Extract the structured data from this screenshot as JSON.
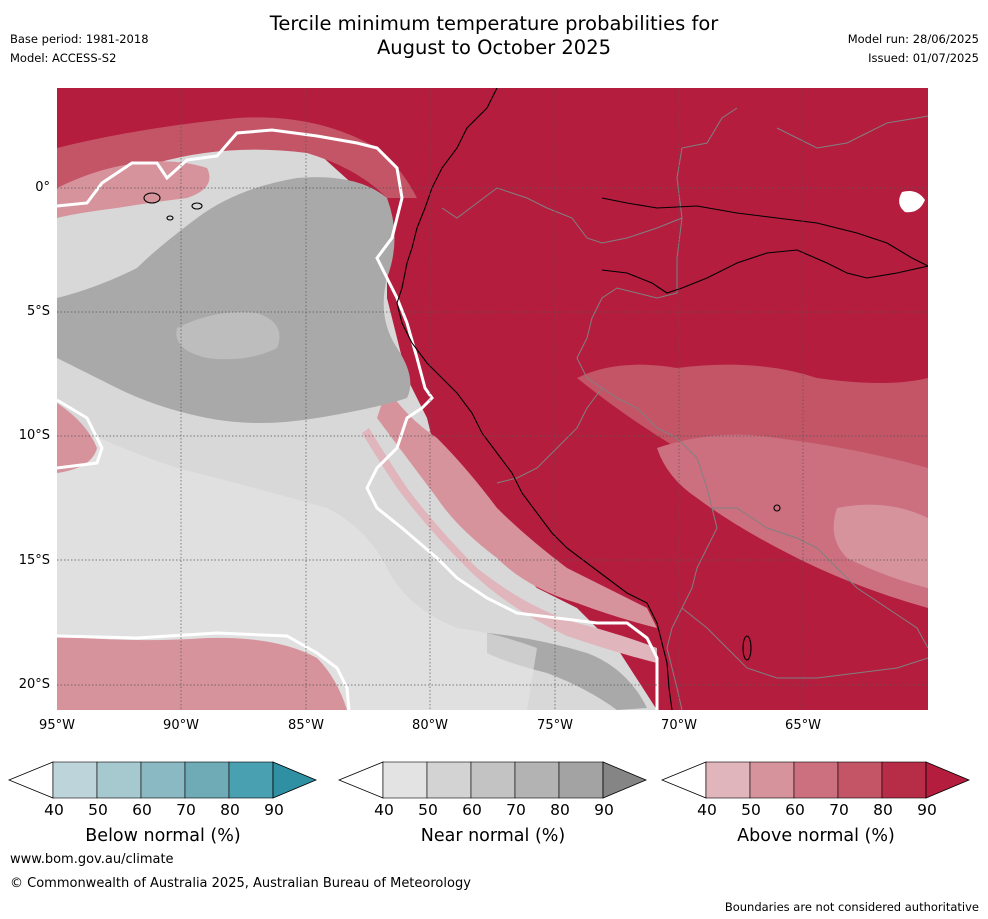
{
  "title": {
    "line1": "Tercile minimum temperature probabilities for",
    "line2": "August to October 2025"
  },
  "meta": {
    "base_period": "Base period: 1981-2018",
    "model": "Model: ACCESS-S2",
    "model_run": "Model run: 28/06/2025",
    "issued": "Issued: 01/07/2025"
  },
  "map": {
    "lon_range": [
      -95.0,
      -60.0
    ],
    "lat_range": [
      -21.0,
      4.0
    ],
    "gridlines": "dotted",
    "y_ticks": [
      "0°",
      "5°S",
      "10°S",
      "15°S",
      "20°S"
    ],
    "x_ticks": [
      "95°W",
      "90°W",
      "85°W",
      "80°W",
      "75°W",
      "70°W",
      "65°W"
    ]
  },
  "colorbars": [
    {
      "title": "Below normal (%)",
      "ticks": [
        "40",
        "50",
        "60",
        "70",
        "80",
        "90"
      ],
      "colors": [
        "#ffffff",
        "#bcd4da",
        "#a6c8cf",
        "#8ab8c3",
        "#6fabb7",
        "#49a0b0",
        "#2f8fa3"
      ]
    },
    {
      "title": "Near normal (%)",
      "ticks": [
        "40",
        "50",
        "60",
        "70",
        "80",
        "90"
      ],
      "colors": [
        "#ffffff",
        "#e3e3e3",
        "#d3d3d3",
        "#c3c3c3",
        "#b3b3b3",
        "#a3a3a3",
        "#858585"
      ]
    },
    {
      "title": "Above normal (%)",
      "ticks": [
        "40",
        "50",
        "60",
        "70",
        "80",
        "90"
      ],
      "colors": [
        "#ffffff",
        "#e0b5bb",
        "#d6939c",
        "#cc707f",
        "#c35567",
        "#b72d47",
        "#b51d3e"
      ]
    }
  ],
  "footer": {
    "website": "www.bom.gov.au/climate",
    "copyright": "© Commonwealth of Australia 2025, Australian Bureau of Meteorology",
    "disclaimer": "Boundaries are not considered authoritative"
  }
}
